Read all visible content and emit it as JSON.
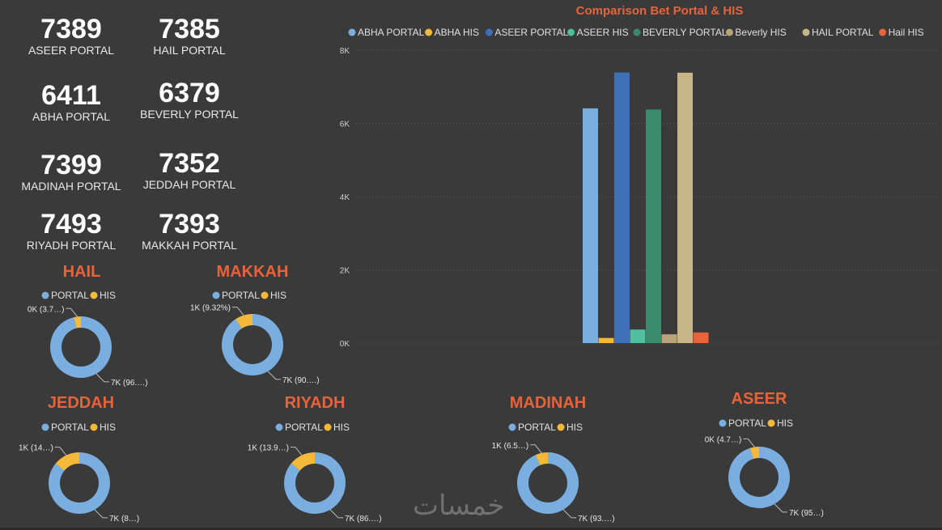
{
  "kpis": [
    {
      "value": "7389",
      "label": "ASEER PORTAL"
    },
    {
      "value": "7385",
      "label": "HAIL PORTAL"
    },
    {
      "value": "6411",
      "label": "ABHA PORTAL"
    },
    {
      "value": "6379",
      "label": "BEVERLY PORTAL"
    },
    {
      "value": "7399",
      "label": "MADINAH PORTAL"
    },
    {
      "value": "7352",
      "label": "JEDDAH PORTAL"
    },
    {
      "value": "7493",
      "label": "RIYADH PORTAL"
    },
    {
      "value": "7393",
      "label": "MAKKAH PORTAL"
    }
  ],
  "colors": {
    "title": "#e8623a",
    "portal": "#7aaee0",
    "his": "#f5b93a",
    "gridline": "#5a5a5a"
  },
  "chart_data": [
    {
      "type": "bar",
      "title": "Comparison Bet Portal & HIS",
      "legend_position": "top",
      "grid": true,
      "ylim": [
        0,
        8000
      ],
      "yticks": [
        0,
        2000,
        4000,
        6000,
        8000
      ],
      "ytick_labels": [
        "0K",
        "2K",
        "4K",
        "6K",
        "8K"
      ],
      "series": [
        {
          "name": "ABHA PORTAL",
          "value": 6411,
          "color": "#7aaee0"
        },
        {
          "name": "ABHA HIS",
          "value": 140,
          "color": "#f5b93a"
        },
        {
          "name": "ASEER PORTAL",
          "value": 7389,
          "color": "#3f6fb6"
        },
        {
          "name": "ASEER HIS",
          "value": 370,
          "color": "#4fbf9f"
        },
        {
          "name": "BEVERLY PORTAL",
          "value": 6379,
          "color": "#3a8a6e"
        },
        {
          "name": "Beverly HIS",
          "value": 240,
          "color": "#b9a47a"
        },
        {
          "name": "HAIL PORTAL",
          "value": 7385,
          "color": "#c8b586"
        },
        {
          "name": "Hail HIS",
          "value": 290,
          "color": "#e8623a"
        }
      ]
    },
    {
      "type": "pie",
      "title": "HAIL",
      "legend": [
        "PORTAL",
        "HIS"
      ],
      "values": [
        {
          "name": "PORTAL",
          "value": 7385
        },
        {
          "name": "HIS",
          "value": 290
        }
      ],
      "labels": {
        "his": "0K (3.7…)",
        "portal": "7K (96.…)"
      }
    },
    {
      "type": "pie",
      "title": "MAKKAH",
      "legend": [
        "PORTAL",
        "HIS"
      ],
      "values": [
        {
          "name": "PORTAL",
          "value": 7393
        },
        {
          "name": "HIS",
          "value": 760
        }
      ],
      "labels": {
        "his": "1K (9.32%)",
        "portal": "7K (90.…)"
      }
    },
    {
      "type": "pie",
      "title": "JEDDAH",
      "legend": [
        "PORTAL",
        "HIS"
      ],
      "values": [
        {
          "name": "PORTAL",
          "value": 7352
        },
        {
          "name": "HIS",
          "value": 1200
        }
      ],
      "labels": {
        "his": "1K (14…)",
        "portal": "7K (8…)"
      }
    },
    {
      "type": "pie",
      "title": "RIYADH",
      "legend": [
        "PORTAL",
        "HIS"
      ],
      "values": [
        {
          "name": "PORTAL",
          "value": 7493
        },
        {
          "name": "HIS",
          "value": 1210
        }
      ],
      "labels": {
        "his": "1K (13.9…)",
        "portal": "7K (86.…)"
      }
    },
    {
      "type": "pie",
      "title": "MADINAH",
      "legend": [
        "PORTAL",
        "HIS"
      ],
      "values": [
        {
          "name": "PORTAL",
          "value": 7399
        },
        {
          "name": "HIS",
          "value": 520
        }
      ],
      "labels": {
        "his": "1K (6.5…)",
        "portal": "7K (93.…)"
      }
    },
    {
      "type": "pie",
      "title": "ASEER",
      "legend": [
        "PORTAL",
        "HIS"
      ],
      "values": [
        {
          "name": "PORTAL",
          "value": 7389
        },
        {
          "name": "HIS",
          "value": 370
        }
      ],
      "labels": {
        "his": "0K (4.7…)",
        "portal": "7K (95…)"
      }
    }
  ],
  "watermark": "خمسات"
}
